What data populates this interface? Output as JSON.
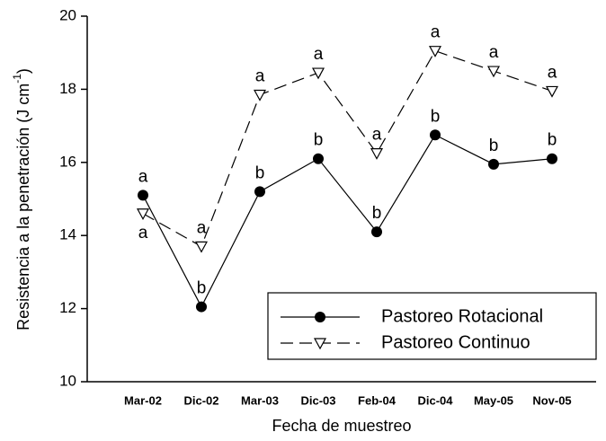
{
  "chart_data": {
    "type": "line",
    "xlabel": "Fecha de muestreo",
    "ylabel": [
      "Resistencia a la penetración (J cm",
      "-1",
      ")"
    ],
    "categories": [
      "Mar-02",
      "Dic-02",
      "Mar-03",
      "Dic-03",
      "Feb-04",
      "Dic-04",
      "May-05",
      "Nov-05"
    ],
    "ylim": [
      10,
      20
    ],
    "yticks": [
      10,
      12,
      14,
      16,
      18,
      20
    ],
    "legend": "lower-right",
    "series": [
      {
        "name": "Pastoreo Rotacional",
        "color": "#000000",
        "marker": "circle",
        "dash": "solid",
        "values": [
          15.1,
          12.05,
          15.2,
          16.1,
          14.1,
          16.75,
          15.95,
          16.1
        ],
        "letters": [
          "a",
          "b",
          "b",
          "b",
          "b",
          "b",
          "b",
          "b"
        ]
      },
      {
        "name": "Pastoreo Continuo",
        "color": "#000000",
        "marker": "triangle-down",
        "dash": "dashed",
        "values": [
          14.6,
          13.7,
          17.85,
          18.45,
          16.25,
          19.05,
          18.5,
          17.95
        ],
        "letters": [
          "a",
          "a",
          "a",
          "a",
          "a",
          "a",
          "a",
          "a"
        ]
      }
    ]
  }
}
